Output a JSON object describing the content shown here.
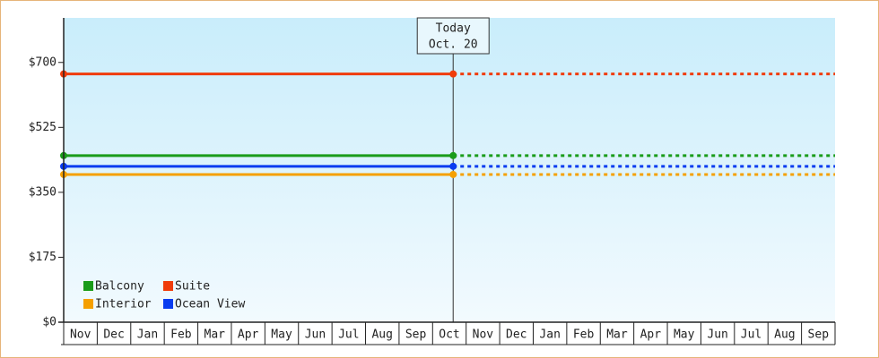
{
  "chart_data": {
    "type": "line",
    "categories": [
      "Nov",
      "Dec",
      "Jan",
      "Feb",
      "Mar",
      "Apr",
      "May",
      "Jun",
      "Jul",
      "Aug",
      "Sep",
      "Oct",
      "Nov",
      "Dec",
      "Jan",
      "Feb",
      "Mar",
      "Apr",
      "May",
      "Jun",
      "Jul",
      "Aug",
      "Sep"
    ],
    "series": [
      {
        "name": "Balcony",
        "color": "#1a9c1a",
        "value": 449
      },
      {
        "name": "Suite",
        "color": "#f03c0a",
        "value": 669
      },
      {
        "name": "Interior",
        "color": "#f5a000",
        "value": 398
      },
      {
        "name": "Ocean View",
        "color": "#0a3cf0",
        "value": 420
      }
    ],
    "ylim": [
      0,
      820
    ],
    "yticks": [
      {
        "value": 0,
        "label": "$0"
      },
      {
        "value": 175,
        "label": "$175"
      },
      {
        "value": 350,
        "label": "$350"
      },
      {
        "value": 525,
        "label": "$525"
      },
      {
        "value": 700,
        "label": "$700"
      }
    ],
    "annotation": {
      "title": "Today",
      "date": "Oct. 20"
    },
    "legend": "lower left"
  }
}
